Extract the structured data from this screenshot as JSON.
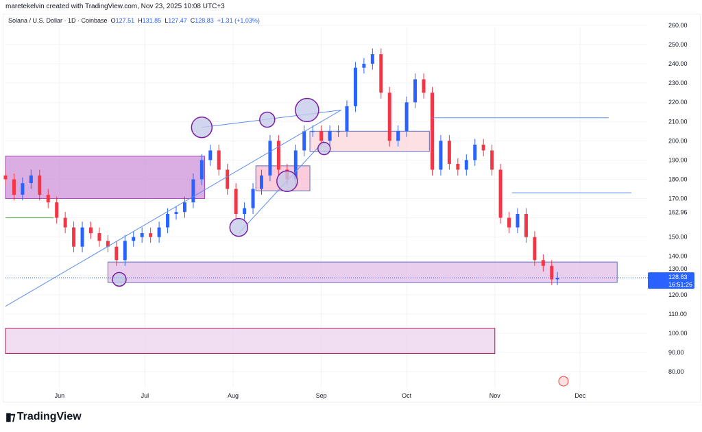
{
  "credit": "maretekelvin created with TradingView.com, Nov 23, 2025 10:08 UTC+3",
  "legend": {
    "symbol": "Solana / U.S. Dollar · 1D · Coinbase",
    "open_label": "O",
    "open": "127.51",
    "high_label": "H",
    "high": "131.85",
    "low_label": "L",
    "low": "127.47",
    "close_label": "C",
    "close": "128.83",
    "change": "+1.31 (+1.03%)"
  },
  "brand": "TradingView",
  "price_badge": {
    "price": "128.83",
    "countdown": "16:51:26",
    "color": "#2962ff"
  },
  "chart_data": {
    "type": "candlestick",
    "title": "Solana / U.S. Dollar · 1D · Coinbase",
    "ylim": [
      75,
      265
    ],
    "xlim": [
      "2025-05-13",
      "2025-12-22"
    ],
    "y_ticks": [
      "80.00",
      "90.00",
      "100.00",
      "110.00",
      "120.00",
      "130.00",
      "140.00",
      "150.00",
      "160.00",
      "170.00",
      "180.00",
      "190.00",
      "200.00",
      "210.00",
      "220.00",
      "230.00",
      "240.00",
      "250.00",
      "260.00"
    ],
    "extra_y_label": "162.96",
    "x_ticks": [
      {
        "label": "Jun",
        "date": "2025-06-01"
      },
      {
        "label": "Jul",
        "date": "2025-07-01"
      },
      {
        "label": "Aug",
        "date": "2025-08-01"
      },
      {
        "label": "Sep",
        "date": "2025-09-01"
      },
      {
        "label": "Oct",
        "date": "2025-10-01"
      },
      {
        "label": "Nov",
        "date": "2025-11-01"
      },
      {
        "label": "Dec",
        "date": "2025-12-01"
      }
    ],
    "colors": {
      "up": "#2962ff",
      "down": "#f23645"
    },
    "dates": [
      "2025-05-13",
      "2025-05-16",
      "2025-05-19",
      "2025-05-22",
      "2025-05-25",
      "2025-05-28",
      "2025-05-31",
      "2025-06-03",
      "2025-06-06",
      "2025-06-09",
      "2025-06-12",
      "2025-06-15",
      "2025-06-18",
      "2025-06-21",
      "2025-06-24",
      "2025-06-27",
      "2025-06-30",
      "2025-07-03",
      "2025-07-06",
      "2025-07-09",
      "2025-07-12",
      "2025-07-15",
      "2025-07-18",
      "2025-07-21",
      "2025-07-24",
      "2025-07-27",
      "2025-07-30",
      "2025-08-02",
      "2025-08-05",
      "2025-08-08",
      "2025-08-11",
      "2025-08-14",
      "2025-08-17",
      "2025-08-20",
      "2025-08-23",
      "2025-08-26",
      "2025-08-29",
      "2025-09-01",
      "2025-09-04",
      "2025-09-07",
      "2025-09-10",
      "2025-09-13",
      "2025-09-16",
      "2025-09-19",
      "2025-09-22",
      "2025-09-25",
      "2025-09-28",
      "2025-10-01",
      "2025-10-04",
      "2025-10-07",
      "2025-10-10",
      "2025-10-13",
      "2025-10-16",
      "2025-10-19",
      "2025-10-22",
      "2025-10-25",
      "2025-10-28",
      "2025-10-31",
      "2025-11-03",
      "2025-11-06",
      "2025-11-09",
      "2025-11-12",
      "2025-11-15",
      "2025-11-18",
      "2025-11-21",
      "2025-11-23"
    ],
    "close": [
      180,
      172,
      178,
      182,
      172,
      168,
      160,
      155,
      145,
      155,
      152,
      148,
      145,
      138,
      148,
      150,
      152,
      150,
      155,
      162,
      163,
      168,
      180,
      190,
      195,
      185,
      175,
      162,
      165,
      175,
      182,
      200,
      185,
      180,
      195,
      205,
      205,
      200,
      205,
      205,
      218,
      238,
      240,
      245,
      225,
      200,
      205,
      220,
      232,
      225,
      185,
      200,
      188,
      185,
      190,
      198,
      195,
      185,
      160,
      155,
      162,
      150,
      138,
      135,
      128,
      128.83
    ],
    "last_price": 128.83,
    "zones": [
      {
        "from": "2025-05-13",
        "to": "2025-07-22",
        "low": 170,
        "high": 192,
        "fill": "#ce93d8",
        "border": "#ab47bc"
      },
      {
        "from": "2025-08-09",
        "to": "2025-08-28",
        "low": 174,
        "high": 187,
        "fill": "#f8bbd0",
        "border": "#5c6bc0"
      },
      {
        "from": "2025-08-28",
        "to": "2025-10-09",
        "low": 194.5,
        "high": 205,
        "fill": "#fcd5d9",
        "border": "#5c6bc0"
      },
      {
        "from": "2025-06-18",
        "to": "2025-12-14",
        "low": 126.4,
        "high": 137,
        "fill": "#e1bee7",
        "border": "#5c6bc0"
      },
      {
        "from": "2025-05-13",
        "to": "2025-11-01",
        "low": 89.5,
        "high": 102.5,
        "fill": "#ecd3ef",
        "border": "#ad1457"
      }
    ],
    "lines": [
      {
        "from": [
          "2025-05-13",
          114
        ],
        "to": [
          "2025-09-08",
          216
        ],
        "color": "#5b8def"
      },
      {
        "from": [
          "2025-07-21",
          207
        ],
        "to": [
          "2025-09-08",
          216
        ],
        "color": "#5b8def"
      },
      {
        "from": [
          "2025-08-03",
          152
        ],
        "to": [
          "2025-09-02",
          200
        ],
        "color": "#5b8def"
      },
      {
        "from": [
          "2025-10-10",
          212
        ],
        "to": [
          "2025-12-11",
          212
        ],
        "color": "#5b8def"
      },
      {
        "from": [
          "2025-11-07",
          173
        ],
        "to": [
          "2025-12-19",
          173
        ],
        "color": "#5b8def"
      },
      {
        "from": [
          "2025-05-13",
          160
        ],
        "to": [
          "2025-05-30",
          160
        ],
        "color": "#4caf50"
      }
    ],
    "markers": [
      {
        "date": "2025-07-21",
        "price": 207
      },
      {
        "date": "2025-08-13",
        "price": 211
      },
      {
        "date": "2025-08-27",
        "price": 216
      },
      {
        "date": "2025-08-20",
        "price": 179
      },
      {
        "date": "2025-08-03",
        "price": 155
      },
      {
        "date": "2025-09-02",
        "price": 196
      },
      {
        "date": "2025-06-22",
        "price": 128
      }
    ]
  }
}
